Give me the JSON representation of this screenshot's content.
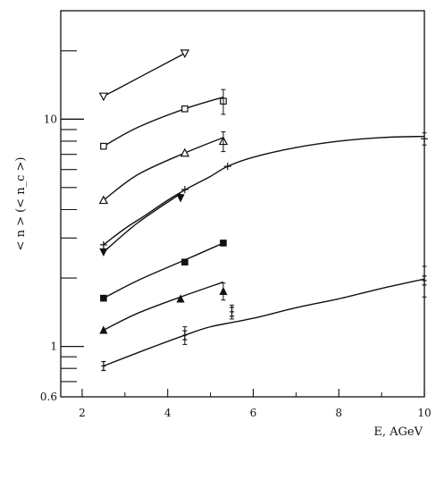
{
  "chart_data": {
    "type": "line",
    "title": "",
    "xlabel": "E, AGeV",
    "ylabel": "< n > (< n_c >)",
    "x_scale": "linear",
    "y_scale": "log",
    "xlim": [
      1.5,
      10.0
    ],
    "ylim": [
      0.6,
      30
    ],
    "x_ticks": [
      2,
      4,
      6,
      8,
      10
    ],
    "y_ticks_labeled": [
      {
        "value": 0.6,
        "label": "0.6"
      },
      {
        "value": 1,
        "label": "1"
      },
      {
        "value": 10,
        "label": "10"
      }
    ],
    "grid": false,
    "series": [
      {
        "marker": "triangle-down-open",
        "points": [
          {
            "x": 2.5,
            "y": 12.6
          },
          {
            "x": 4.4,
            "y": 19.5
          }
        ],
        "curve": [
          [
            2.5,
            12.6
          ],
          [
            4.4,
            19.5
          ]
        ]
      },
      {
        "marker": "square-open",
        "points": [
          {
            "x": 2.5,
            "y": 7.6
          },
          {
            "x": 4.4,
            "y": 11.1
          },
          {
            "x": 5.3,
            "y": 12.0
          }
        ],
        "curve": [
          [
            2.5,
            7.6
          ],
          [
            3.3,
            9.2
          ],
          [
            4.4,
            11.1
          ],
          [
            5.3,
            12.5
          ]
        ]
      },
      {
        "marker": "triangle-up-open",
        "points": [
          {
            "x": 2.5,
            "y": 4.4
          },
          {
            "x": 4.4,
            "y": 7.1
          },
          {
            "x": 5.3,
            "y": 8.0
          }
        ],
        "curve": [
          [
            2.5,
            4.4
          ],
          [
            3.3,
            5.7
          ],
          [
            4.4,
            7.1
          ],
          [
            5.3,
            8.3
          ]
        ]
      },
      {
        "marker": "plus",
        "points": [
          {
            "x": 2.5,
            "y": 2.8
          },
          {
            "x": 4.4,
            "y": 4.9
          },
          {
            "x": 5.4,
            "y": 6.2
          },
          {
            "x": 10.0,
            "y": 8.2
          }
        ],
        "curve": [
          [
            2.5,
            2.8
          ],
          [
            3.0,
            3.3
          ],
          [
            3.5,
            3.8
          ],
          [
            4.0,
            4.4
          ],
          [
            4.5,
            5.0
          ],
          [
            5.0,
            5.6
          ],
          [
            5.4,
            6.2
          ],
          [
            6.0,
            6.8
          ],
          [
            7.0,
            7.5
          ],
          [
            8.0,
            8.0
          ],
          [
            9.0,
            8.3
          ],
          [
            10.0,
            8.4
          ]
        ]
      },
      {
        "marker": "triangle-down-filled",
        "points": [
          {
            "x": 2.5,
            "y": 2.6
          },
          {
            "x": 4.3,
            "y": 4.5
          }
        ],
        "curve": [
          [
            2.5,
            2.6
          ],
          [
            3.3,
            3.5
          ],
          [
            4.3,
            4.7
          ]
        ]
      },
      {
        "marker": "square-filled",
        "points": [
          {
            "x": 2.5,
            "y": 1.63
          },
          {
            "x": 4.4,
            "y": 2.35
          },
          {
            "x": 5.3,
            "y": 2.85
          }
        ],
        "curve": [
          [
            2.5,
            1.63
          ],
          [
            3.3,
            1.95
          ],
          [
            4.4,
            2.4
          ],
          [
            5.3,
            2.85
          ]
        ]
      },
      {
        "marker": "triangle-up-filled",
        "points": [
          {
            "x": 2.5,
            "y": 1.18
          },
          {
            "x": 4.3,
            "y": 1.62
          },
          {
            "x": 5.3,
            "y": 1.75
          }
        ],
        "curve": [
          [
            2.5,
            1.18
          ],
          [
            3.3,
            1.4
          ],
          [
            4.3,
            1.65
          ],
          [
            5.3,
            1.92
          ]
        ]
      },
      {
        "marker": "cross-small",
        "points": [
          {
            "x": 2.5,
            "y": 0.82
          },
          {
            "x": 4.4,
            "y": 1.12
          },
          {
            "x": 5.5,
            "y": 1.42
          },
          {
            "x": 10.0,
            "y": 1.95
          }
        ],
        "curve": [
          [
            2.5,
            0.82
          ],
          [
            3.5,
            0.97
          ],
          [
            4.4,
            1.12
          ],
          [
            5.0,
            1.22
          ],
          [
            6.0,
            1.33
          ],
          [
            7.0,
            1.48
          ],
          [
            8.0,
            1.62
          ],
          [
            9.0,
            1.8
          ],
          [
            10.0,
            1.98
          ]
        ]
      }
    ]
  }
}
